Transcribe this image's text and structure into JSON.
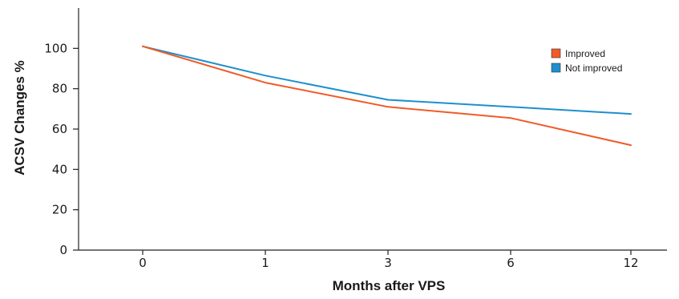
{
  "chart_data": {
    "type": "line",
    "categories": [
      "0",
      "1",
      "3",
      "6",
      "12"
    ],
    "series": [
      {
        "name": "Improved",
        "values": [
          101,
          83,
          71,
          65.5,
          52
        ],
        "color": "#f05a28"
      },
      {
        "name": "Not improved",
        "values": [
          101,
          86.5,
          74.5,
          71,
          67.5
        ],
        "color": "#1e8fce"
      }
    ],
    "ylim": [
      0,
      120
    ],
    "yticks": [
      0,
      20,
      40,
      60,
      80,
      100
    ],
    "ylabel": "ACSV Changes %",
    "xlabel": "Months after VPS",
    "legend_position": "top-right",
    "grid": false
  }
}
